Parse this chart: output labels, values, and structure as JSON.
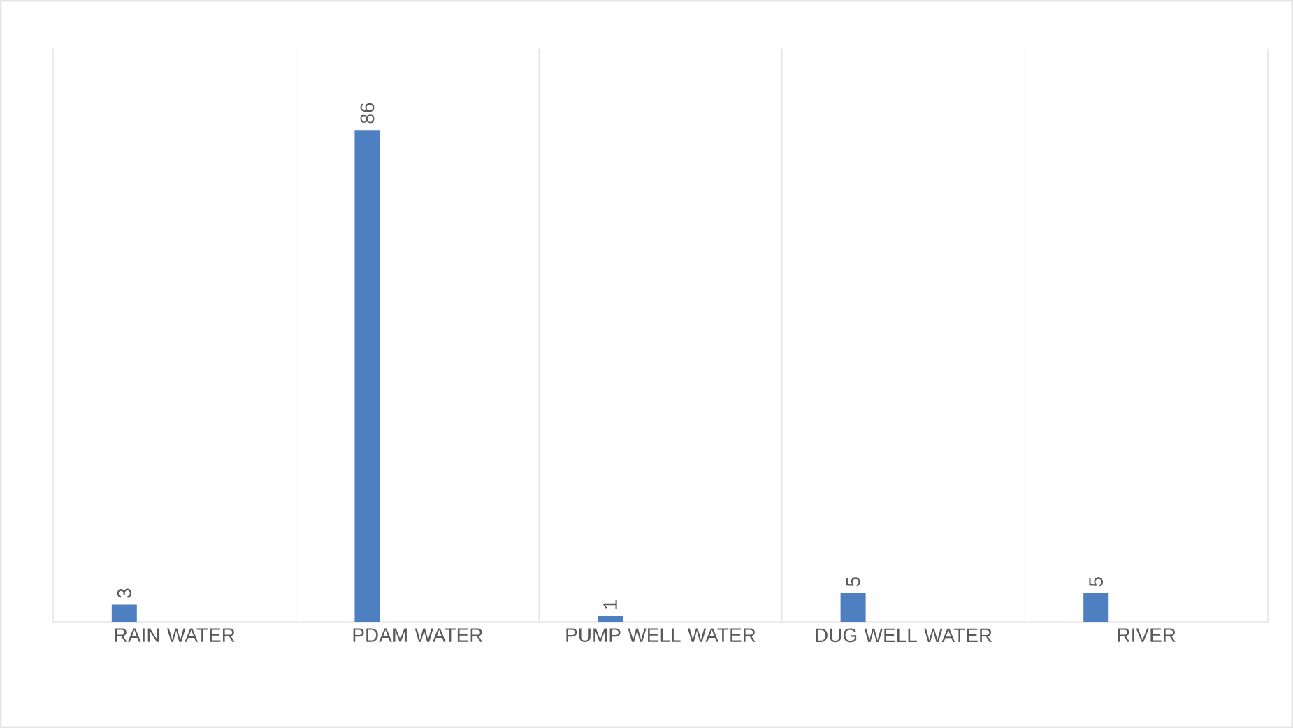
{
  "chart_data": {
    "type": "bar",
    "categories": [
      "RAIN WATER",
      "PDAM WATER",
      "PUMP WELL WATER",
      "DUG WELL WATER",
      "RIVER"
    ],
    "values": [
      3,
      86,
      1,
      5,
      5
    ],
    "color": "#4e7fc0",
    "data_labels": true,
    "grid": "x"
  }
}
